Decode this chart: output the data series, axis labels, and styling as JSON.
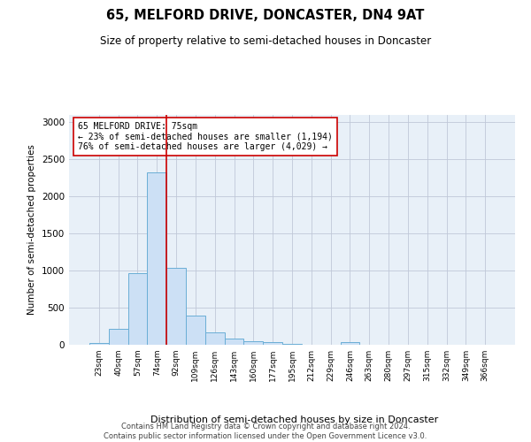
{
  "title": "65, MELFORD DRIVE, DONCASTER, DN4 9AT",
  "subtitle": "Size of property relative to semi-detached houses in Doncaster",
  "xlabel": "Distribution of semi-detached houses by size in Doncaster",
  "ylabel": "Number of semi-detached properties",
  "footer_line1": "Contains HM Land Registry data © Crown copyright and database right 2024.",
  "footer_line2": "Contains public sector information licensed under the Open Government Licence v3.0.",
  "annotation_text": "65 MELFORD DRIVE: 75sqm\n← 23% of semi-detached houses are smaller (1,194)\n76% of semi-detached houses are larger (4,029) →",
  "bar_categories": [
    "23sqm",
    "40sqm",
    "57sqm",
    "74sqm",
    "92sqm",
    "109sqm",
    "126sqm",
    "143sqm",
    "160sqm",
    "177sqm",
    "195sqm",
    "212sqm",
    "229sqm",
    "246sqm",
    "263sqm",
    "280sqm",
    "297sqm",
    "315sqm",
    "332sqm",
    "349sqm",
    "366sqm"
  ],
  "bar_values": [
    20,
    220,
    970,
    2330,
    1040,
    390,
    165,
    80,
    50,
    30,
    10,
    5,
    5,
    35,
    5,
    5,
    5,
    5,
    5,
    5,
    5
  ],
  "bar_color": "#cce0f5",
  "bar_edge_color": "#6aaed6",
  "vline_color": "#cc0000",
  "annotation_box_color": "#ffffff",
  "annotation_box_edgecolor": "#cc0000",
  "ylim": [
    0,
    3100
  ],
  "background_color": "#ffffff",
  "plot_bg_color": "#e8f0f8",
  "grid_color": "#c0c8d8"
}
